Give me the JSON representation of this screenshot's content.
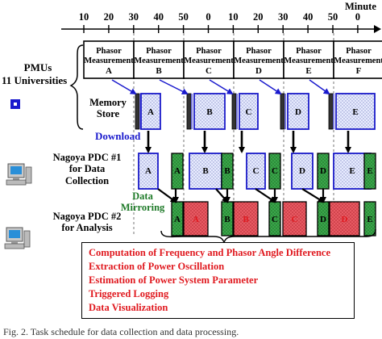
{
  "timeline": {
    "unit": "Minute",
    "ticks": [
      "10",
      "20",
      "30",
      "40",
      "50",
      "0",
      "10",
      "20",
      "30",
      "40",
      "50",
      "0"
    ]
  },
  "phasor_blocks": [
    {
      "title": "Phasor",
      "sub": "Measurement",
      "letter": "A"
    },
    {
      "title": "Phasor",
      "sub": "Measurement",
      "letter": "B"
    },
    {
      "title": "Phasor",
      "sub": "Measurement",
      "letter": "C"
    },
    {
      "title": "Phasor",
      "sub": "Measurement",
      "letter": "D"
    },
    {
      "title": "Phasor",
      "sub": "Measurement",
      "letter": "E"
    },
    {
      "title": "Phasor",
      "sub": "Measurement",
      "letter": "F"
    }
  ],
  "labels": {
    "pmus": "PMUs",
    "universities": "11 Universities",
    "memory_store": [
      "Memory",
      "Store"
    ],
    "download": "Download",
    "data_mirroring": [
      "Data",
      "Mirroring"
    ],
    "pdc1": [
      "Nagoya PDC #1",
      "for Data",
      "Collection"
    ],
    "pdc2": [
      "Nagoya PDC #2",
      "for Analysis"
    ]
  },
  "memory_letters": [
    "A",
    "B",
    "C",
    "D",
    "E"
  ],
  "pdc1_letters": [
    "A",
    "B",
    "C",
    "D",
    "E"
  ],
  "green_letters": [
    "A",
    "B",
    "C",
    "D",
    "E"
  ],
  "pdc2_green_letters": [
    "A",
    "B",
    "C",
    "D",
    "E"
  ],
  "pdc2_red_letters": [
    "A",
    "B",
    "C",
    "D",
    "E"
  ],
  "tasks": [
    "Computation of Frequency and Phasor Angle Difference",
    "Extraction of Power Oscillation",
    "Estimation of Power System Parameter",
    "Triggered Logging",
    "Data Visualization"
  ],
  "caption": "Fig. 2.  Task schedule for data collection and data processing.",
  "colors": {
    "blue": "#1a1ac8",
    "green": "#2e9e3a",
    "red": "#e0191f",
    "arrow_blue": "#1a1acd"
  }
}
